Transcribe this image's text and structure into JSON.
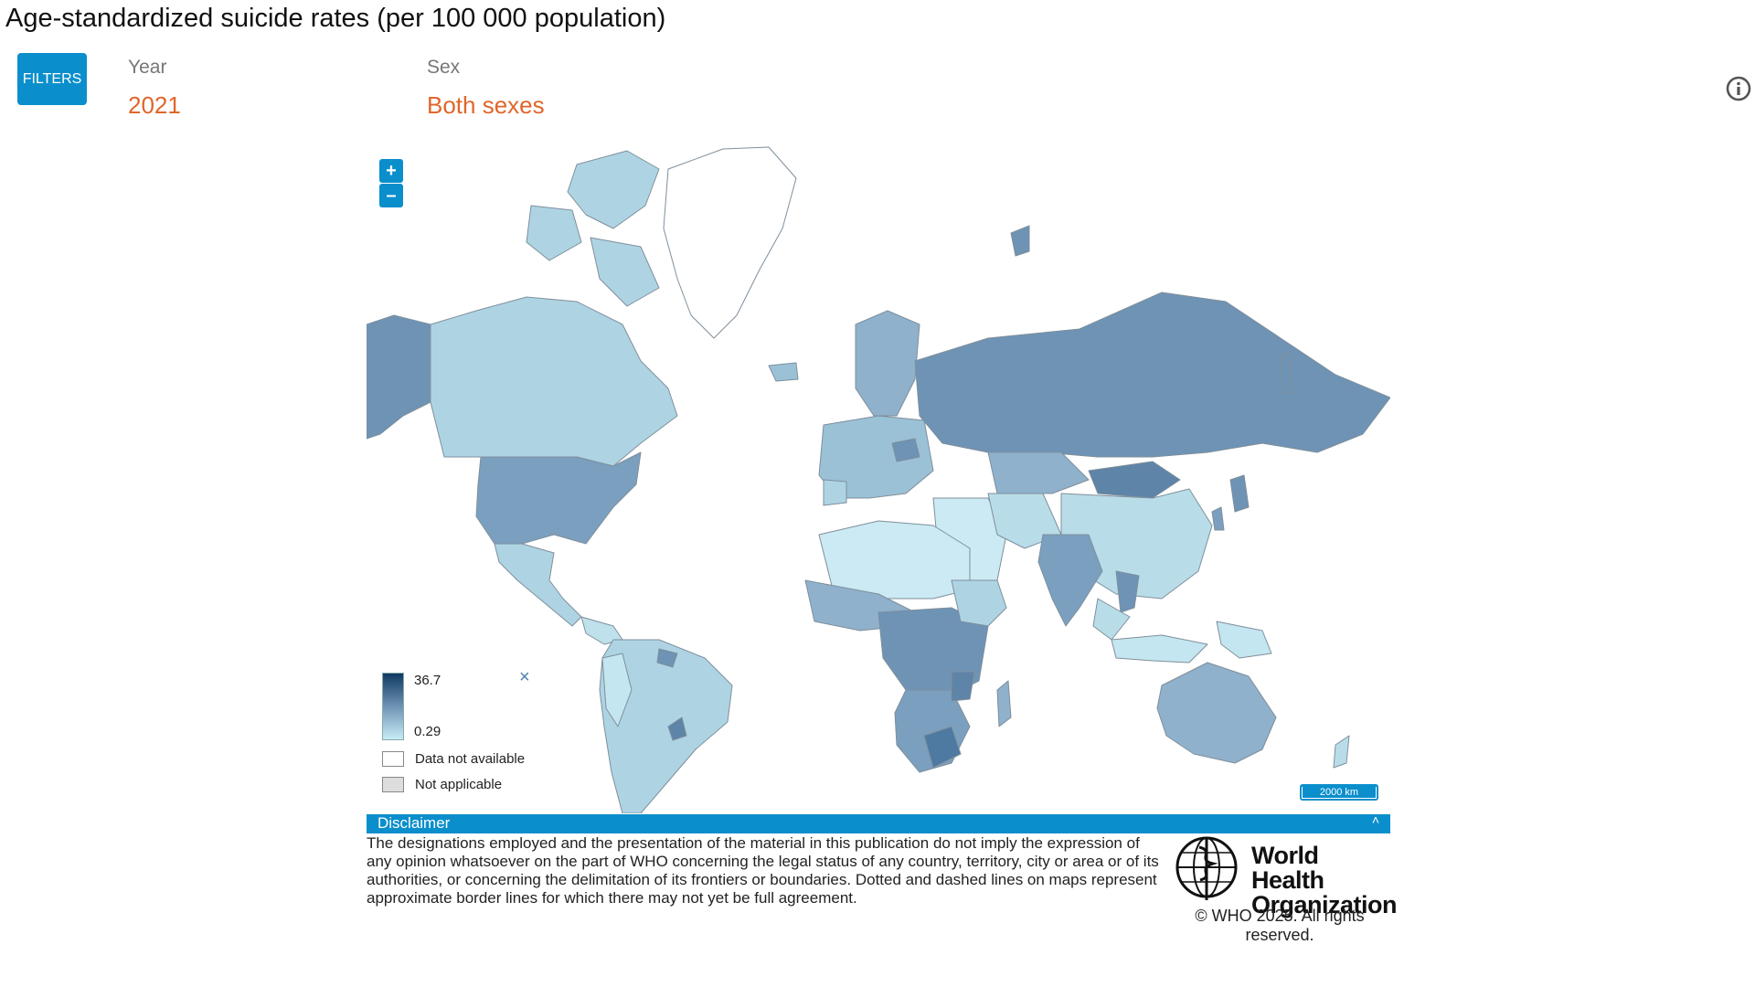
{
  "title": "Age-standardized suicide rates (per 100 000 population)",
  "filters": {
    "button_label": "FILTERS",
    "year": {
      "label": "Year",
      "value": "2021"
    },
    "sex": {
      "label": "Sex",
      "value": "Both sexes"
    }
  },
  "icons": {
    "info": "info-icon",
    "zoom_in": "plus-icon",
    "zoom_out": "minus-icon",
    "legend_close": "close-icon"
  },
  "map": {
    "zoom_in_label": "+",
    "zoom_out_label": "–",
    "legend": {
      "max": "36.7",
      "min": "0.29",
      "no_data_label": "Data not available",
      "not_applicable_label": "Not applicable",
      "close_label": "×"
    },
    "scale_label": "2000 km",
    "colors": {
      "high": "#0f3a63",
      "mid": "#6e93b4",
      "low": "#c8ecf6",
      "no_data": "#ffffff",
      "not_applicable": "#dddddd",
      "accent": "#0b8fcc"
    }
  },
  "disclaimer": {
    "title": "Disclaimer",
    "caret": "˄",
    "text": "The designations employed and the presentation of the material in this publication do not imply the expression of any opinion whatsoever on the part of WHO concerning the legal status of any country, territory, city or area or of its authorities, or concerning the delimitation of its frontiers or boundaries. Dotted and dashed lines on maps represent approximate border lines for which there may not yet be full agreement."
  },
  "footer": {
    "org_name_line1": "World Health",
    "org_name_line2": "Organization",
    "copyright": "© WHO 2025. All rights reserved."
  }
}
